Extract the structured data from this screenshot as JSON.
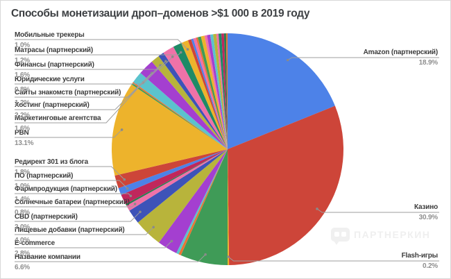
{
  "title": "Способы монетизации дроп–доменов >$1 000 в 2019 году",
  "watermark": {
    "text": "ПАРТНЕРКИН"
  },
  "chart_data": {
    "type": "pie",
    "title": "Способы монетизации дроп–доменов >$1 000 в 2019 году",
    "unit": "%",
    "legend_position": "outside-callout-labels",
    "note": "Slices listed clockwise from 12 o'clock; slices with empty label are small unlabeled segments in the source image",
    "slices": [
      {
        "label": "Amazon (партнерский)",
        "value": 18.9,
        "color": "#4d82e8",
        "labeled": true
      },
      {
        "label": "Казино",
        "value": 30.9,
        "color": "#cd4539",
        "labeled": true
      },
      {
        "label": "Flash-игры",
        "value": 0.2,
        "color": "#edb32c",
        "labeled": true
      },
      {
        "label": "Название компании",
        "value": 6.6,
        "color": "#3f9b57",
        "labeled": true
      },
      {
        "label": "",
        "value": 0.35,
        "color": "#ea7434",
        "labeled": false
      },
      {
        "label": "",
        "value": 0.35,
        "color": "#5bc3cd",
        "labeled": false
      },
      {
        "label": "E-commerce",
        "value": 2.8,
        "color": "#a43fd0",
        "labeled": true
      },
      {
        "label": "Пищевые добавки (партнерский)",
        "value": 4.0,
        "color": "#b8b43b",
        "labeled": true
      },
      {
        "label": "CBD (партнерский)",
        "value": 2.0,
        "color": "#3d53b8",
        "labeled": true
      },
      {
        "label": "Солнечные батареи (партнерский)",
        "value": 0.8,
        "color": "#ef72a8",
        "labeled": true
      },
      {
        "label": "",
        "value": 0.25,
        "color": "#2a7d4f",
        "labeled": false
      },
      {
        "label": "Фармпродукция (партнерский)",
        "value": 1.4,
        "color": "#c0275c",
        "labeled": true
      },
      {
        "label": "ПО (партнерский)",
        "value": 1.0,
        "color": "#4d82e8",
        "labeled": true
      },
      {
        "label": "Редирект 301 из блога",
        "value": 1.8,
        "color": "#cd4539",
        "labeled": true
      },
      {
        "label": "PBN",
        "value": 13.1,
        "color": "#edb32c",
        "labeled": true
      },
      {
        "label": "",
        "value": 0.2,
        "color": "#3f9b57",
        "labeled": false
      },
      {
        "label": "",
        "value": 0.2,
        "color": "#ea7434",
        "labeled": false
      },
      {
        "label": "Маркетинговые агентства",
        "value": 1.6,
        "color": "#5bc3cd",
        "labeled": true
      },
      {
        "label": "Хостинг (партнерский)",
        "value": 2.2,
        "color": "#a43fd0",
        "labeled": true
      },
      {
        "label": "Сайты знакомств (партнерский)",
        "value": 1.2,
        "color": "#b8b43b",
        "labeled": true
      },
      {
        "label": "Юридические услуги",
        "value": 0.8,
        "color": "#3d53b8",
        "labeled": true
      },
      {
        "label": "Финансы (партнерский)",
        "value": 1.6,
        "color": "#ef72a8",
        "labeled": true
      },
      {
        "label": "Матрасы (партнерский)",
        "value": 1.2,
        "color": "#1f8a66",
        "labeled": true
      },
      {
        "label": "Мобильные трекеры",
        "value": 1.0,
        "color": "#edb32c",
        "labeled": true
      },
      {
        "label": "",
        "value": 0.45,
        "color": "#cd4539",
        "labeled": false
      },
      {
        "label": "",
        "value": 0.3,
        "color": "#4d82e8",
        "labeled": false
      },
      {
        "label": "",
        "value": 0.4,
        "color": "#ef72a8",
        "labeled": false
      },
      {
        "label": "",
        "value": 0.25,
        "color": "#ea7434",
        "labeled": false
      },
      {
        "label": "",
        "value": 0.45,
        "color": "#3f9b57",
        "labeled": false
      },
      {
        "label": "",
        "value": 0.5,
        "color": "#edb32c",
        "labeled": false
      },
      {
        "label": "",
        "value": 0.35,
        "color": "#ef72a8",
        "labeled": false
      },
      {
        "label": "",
        "value": 0.45,
        "color": "#a43fd0",
        "labeled": false
      },
      {
        "label": "",
        "value": 0.4,
        "color": "#5bc3cd",
        "labeled": false
      },
      {
        "label": "",
        "value": 0.45,
        "color": "#b8b43b",
        "labeled": false
      },
      {
        "label": "",
        "value": 0.3,
        "color": "#ef72a8",
        "labeled": false
      },
      {
        "label": "",
        "value": 0.4,
        "color": "#1f8a66",
        "labeled": false
      },
      {
        "label": "",
        "value": 0.35,
        "color": "#c0275c",
        "labeled": false
      },
      {
        "label": "",
        "value": 0.3,
        "color": "#2a7d4f",
        "labeled": false
      },
      {
        "label": "",
        "value": 0.2,
        "color": "#ea7434",
        "labeled": false
      }
    ]
  }
}
